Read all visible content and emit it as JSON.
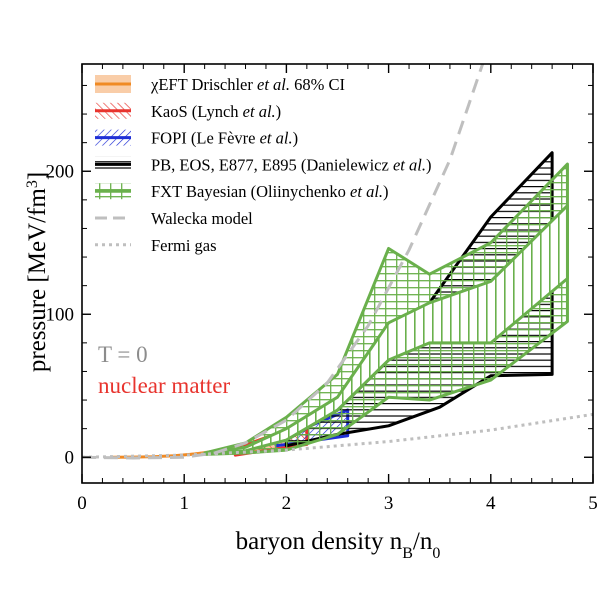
{
  "chart_data": {
    "type": "area",
    "xlabel": "baryon density n_B/n_0",
    "ylabel": "pressure [MeV/fm^3]",
    "xlim": [
      0,
      5
    ],
    "ylim": [
      -18,
      275
    ],
    "xticks": [
      0,
      1,
      2,
      3,
      4,
      5
    ],
    "yticks": [
      0,
      100,
      200
    ],
    "legend_position": "top-left",
    "annotations": [
      {
        "text": "T = 0",
        "color": "#8c8c8c"
      },
      {
        "text": "nuclear matter",
        "color": "#e8342e"
      }
    ],
    "series": [
      {
        "name": "χEFT Drischler et al. 68% CI",
        "color": "#f4a460",
        "style": "filled band",
        "x": [
          0.3,
          0.5,
          0.7,
          0.9,
          1.1,
          1.3,
          1.5,
          1.7,
          1.9,
          2.0
        ],
        "lower": [
          0,
          0,
          0.3,
          0.8,
          1.5,
          2.5,
          3.5,
          4.8,
          6.0,
          7.0
        ],
        "upper": [
          0,
          0.2,
          0.5,
          1.3,
          3.0,
          5.0,
          8.0,
          12.0,
          17.0,
          21.0
        ]
      },
      {
        "name": "KaoS (Lynch et al.)",
        "color": "#e8342e",
        "style": "hatched band",
        "x": [
          1.5,
          2.2
        ],
        "lower": [
          1.5,
          9.0
        ],
        "upper": [
          6.0,
          24.0
        ]
      },
      {
        "name": "FOPI (Le Fèvre et al.)",
        "color": "#1f2fd6",
        "style": "hatched band",
        "x": [
          1.9,
          2.6
        ],
        "lower": [
          8.0,
          15.0
        ],
        "upper": [
          12.0,
          33.0
        ]
      },
      {
        "name": "PB, EOS, E877, E895 (Danielewicz et al.)",
        "color": "#000000",
        "style": "hatched band",
        "x": [
          2.0,
          2.5,
          3.0,
          3.5,
          4.0,
          4.6
        ],
        "lower": [
          8.0,
          16.0,
          22.0,
          35.0,
          57.0,
          58.0
        ],
        "upper": [
          12.0,
          33.0,
          68.0,
          118.0,
          168.0,
          213.0
        ]
      },
      {
        "name": "FXT Bayesian (Oliinychenko et al.)",
        "color": "#6ab04c",
        "style": "hatched band with inner band",
        "x": [
          1.2,
          1.6,
          2.0,
          2.5,
          3.0,
          3.4,
          4.0,
          4.75
        ],
        "lower": [
          2.0,
          3.0,
          5.0,
          16.0,
          42.0,
          40.0,
          54.0,
          95.0
        ],
        "upper": [
          3.0,
          10.0,
          28.0,
          58.0,
          146.0,
          128.0,
          150.0,
          205.0
        ],
        "inner_lower": [
          2.3,
          4.5,
          12.0,
          33.0,
          68.0,
          80.0,
          80.0,
          125.0
        ],
        "inner_upper": [
          2.8,
          7.0,
          20.0,
          42.0,
          94.0,
          108.0,
          123.0,
          176.0
        ]
      },
      {
        "name": "Walecka model",
        "color": "#bfbfbf",
        "style": "dashed line",
        "x": [
          0,
          0.5,
          1.0,
          1.3,
          1.6,
          2.0,
          2.4,
          2.8,
          3.2,
          3.6,
          3.92
        ],
        "y": [
          0,
          -0.5,
          0,
          3.0,
          10.0,
          26.0,
          52.0,
          92.0,
          145.0,
          208.0,
          275.0
        ]
      },
      {
        "name": "Fermi gas",
        "color": "#bfbfbf",
        "style": "dotted line",
        "x": [
          0,
          1.0,
          2.0,
          3.0,
          4.0,
          5.0
        ],
        "y": [
          0,
          1.5,
          5.0,
          11.0,
          19.0,
          30.0
        ]
      }
    ]
  }
}
